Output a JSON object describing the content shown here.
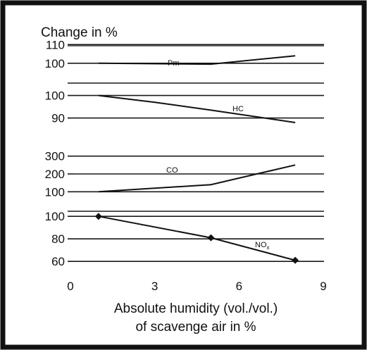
{
  "chart_data": {
    "type": "line",
    "title": "Change in %",
    "xlabel_lines": [
      "Absolute humidity (vol./vol.)",
      "of scavenge air in %"
    ],
    "x_ticks": [
      0,
      3,
      6,
      9
    ],
    "xlim": [
      0,
      9
    ],
    "grid": "horizontal",
    "panels": [
      {
        "series_label": "Pm",
        "y_ticks": [
          110,
          100
        ],
        "ylim": [
          95,
          112
        ],
        "x": [
          1,
          5,
          8
        ],
        "values": [
          100,
          99.5,
          104
        ],
        "markers": false
      },
      {
        "series_label": "HC",
        "y_ticks": [
          100,
          90
        ],
        "ylim": [
          83,
          103
        ],
        "x": [
          1,
          3,
          5,
          8
        ],
        "values": [
          100,
          97,
          93.5,
          88
        ],
        "markers": false
      },
      {
        "series_label": "CO",
        "y_ticks": [
          300,
          200,
          100
        ],
        "ylim": [
          50,
          350
        ],
        "x": [
          1,
          5,
          8
        ],
        "values": [
          100,
          140,
          250
        ],
        "markers": false
      },
      {
        "series_label": "NOx",
        "y_ticks": [
          100,
          80,
          60
        ],
        "ylim": [
          52,
          112
        ],
        "x": [
          1,
          5,
          8
        ],
        "values": [
          100,
          81,
          61
        ],
        "markers": true
      }
    ]
  }
}
